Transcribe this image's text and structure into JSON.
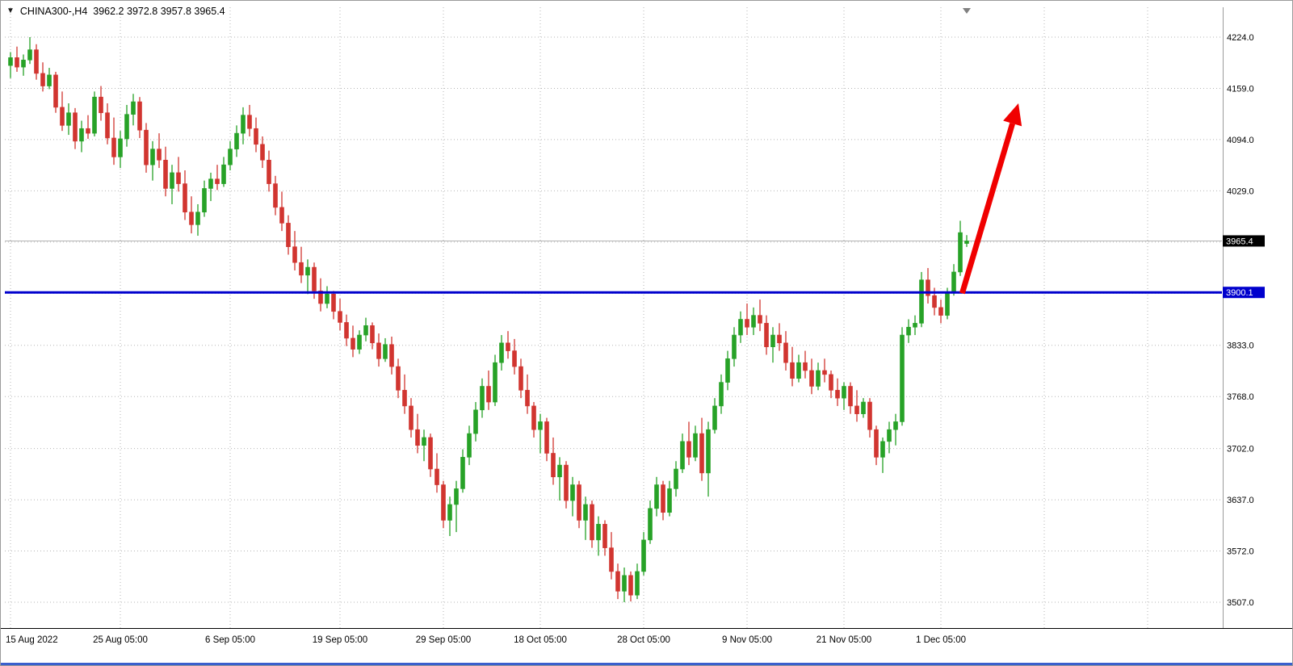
{
  "header": {
    "marker_icon": "▼",
    "symbol_timeframe": "CHINA300-,H4",
    "ohlc": "3962.2 3972.8 3957.8 3965.4"
  },
  "chart_data": {
    "type": "candlestick",
    "symbol": "CHINA300-",
    "timeframe": "H4",
    "last_quote": {
      "open": 3962.2,
      "high": 3972.8,
      "low": 3957.8,
      "close": 3965.4
    },
    "style": {
      "background": "#ffffff",
      "grid": "#b5b5b5",
      "bull": "#27a227",
      "bear": "#d13530",
      "bid_line": "#b4b4b4",
      "axis_text": "#000000"
    },
    "price_axis": {
      "min": 3507.0,
      "max": 4224.0,
      "current_price": 3965.4,
      "ticks": [
        {
          "price": 4224.0,
          "label": "4224.0"
        },
        {
          "price": 4159.0,
          "label": "4159.0"
        },
        {
          "price": 4094.0,
          "label": "4094.0"
        },
        {
          "price": 4029.0,
          "label": "4029.0"
        },
        {
          "price": 3964.0,
          "label": ""
        },
        {
          "price": 3899.0,
          "label": ""
        },
        {
          "price": 3833.0,
          "label": "3833.0"
        },
        {
          "price": 3768.0,
          "label": "3768.0"
        },
        {
          "price": 3702.0,
          "label": "3702.0"
        },
        {
          "price": 3637.0,
          "label": "3637.0"
        },
        {
          "price": 3572.0,
          "label": "3572.0"
        },
        {
          "price": 3507.0,
          "label": "3507.0"
        }
      ],
      "badges": [
        {
          "name": "bid-price",
          "price": 3965.4,
          "label": "3965.4",
          "color": "#000000"
        },
        {
          "name": "line-price",
          "price": 3900.1,
          "label": "3900.1",
          "color": "#0000cd"
        }
      ]
    },
    "time_axis": {
      "ticks": [
        {
          "index": 0,
          "label": "15 Aug 2022"
        },
        {
          "index": 17,
          "label": "25 Aug 05:00"
        },
        {
          "index": 34,
          "label": "6 Sep 05:00"
        },
        {
          "index": 51,
          "label": "19 Sep 05:00"
        },
        {
          "index": 67,
          "label": "29 Sep 05:00"
        },
        {
          "index": 82,
          "label": "18 Oct 05:00"
        },
        {
          "index": 98,
          "label": "28 Oct 05:00"
        },
        {
          "index": 114,
          "label": "9 Nov 05:00"
        },
        {
          "index": 129,
          "label": "21 Nov 05:00"
        },
        {
          "index": 144,
          "label": "1 Dec 05:00"
        },
        {
          "index": 160,
          "label": ""
        },
        {
          "index": 176,
          "label": ""
        }
      ]
    },
    "annotations": {
      "horizontal_line": {
        "price": 3900.1,
        "color": "#0000cd",
        "width": 3
      },
      "trend_arrow": {
        "from_index": 147.3,
        "from_price": 3899.0,
        "to_index": 156.0,
        "to_price": 4140.0,
        "color": "#f00000"
      }
    },
    "candles": [
      [
        4188,
        4205,
        4172,
        4198
      ],
      [
        4198,
        4212,
        4180,
        4186
      ],
      [
        4186,
        4202,
        4175,
        4195
      ],
      [
        4195,
        4224,
        4190,
        4208
      ],
      [
        4208,
        4215,
        4170,
        4178
      ],
      [
        4178,
        4192,
        4155,
        4162
      ],
      [
        4162,
        4185,
        4158,
        4176
      ],
      [
        4176,
        4180,
        4128,
        4135
      ],
      [
        4135,
        4155,
        4105,
        4112
      ],
      [
        4112,
        4140,
        4100,
        4128
      ],
      [
        4128,
        4134,
        4082,
        4092
      ],
      [
        4092,
        4118,
        4078,
        4108
      ],
      [
        4108,
        4125,
        4095,
        4102
      ],
      [
        4102,
        4155,
        4098,
        4148
      ],
      [
        4148,
        4162,
        4118,
        4128
      ],
      [
        4128,
        4140,
        4088,
        4096
      ],
      [
        4096,
        4122,
        4062,
        4072
      ],
      [
        4072,
        4105,
        4058,
        4095
      ],
      [
        4095,
        4138,
        4085,
        4126
      ],
      [
        4126,
        4152,
        4112,
        4142
      ],
      [
        4142,
        4148,
        4096,
        4106
      ],
      [
        4106,
        4115,
        4052,
        4062
      ],
      [
        4062,
        4092,
        4042,
        4082
      ],
      [
        4082,
        4102,
        4058,
        4068
      ],
      [
        4068,
        4085,
        4022,
        4032
      ],
      [
        4032,
        4062,
        4012,
        4052
      ],
      [
        4052,
        4072,
        4028,
        4038
      ],
      [
        4038,
        4055,
        3992,
        4002
      ],
      [
        4002,
        4022,
        3975,
        3986
      ],
      [
        3986,
        4012,
        3972,
        4002
      ],
      [
        4002,
        4042,
        3996,
        4032
      ],
      [
        4032,
        4052,
        4016,
        4044
      ],
      [
        4044,
        4062,
        4030,
        4038
      ],
      [
        4038,
        4072,
        4034,
        4062
      ],
      [
        4062,
        4092,
        4055,
        4082
      ],
      [
        4082,
        4112,
        4072,
        4102
      ],
      [
        4102,
        4135,
        4088,
        4125
      ],
      [
        4125,
        4138,
        4098,
        4108
      ],
      [
        4108,
        4122,
        4078,
        4088
      ],
      [
        4088,
        4098,
        4058,
        4068
      ],
      [
        4068,
        4080,
        4028,
        4038
      ],
      [
        4038,
        4048,
        3998,
        4008
      ],
      [
        4008,
        4028,
        3978,
        3988
      ],
      [
        3988,
        3998,
        3948,
        3958
      ],
      [
        3958,
        3978,
        3928,
        3938
      ],
      [
        3938,
        3958,
        3912,
        3922
      ],
      [
        3922,
        3942,
        3898,
        3932
      ],
      [
        3932,
        3938,
        3892,
        3902
      ],
      [
        3902,
        3918,
        3876,
        3886
      ],
      [
        3886,
        3908,
        3880,
        3898
      ],
      [
        3898,
        3902,
        3866,
        3876
      ],
      [
        3876,
        3892,
        3852,
        3862
      ],
      [
        3862,
        3872,
        3832,
        3842
      ],
      [
        3842,
        3858,
        3818,
        3828
      ],
      [
        3828,
        3852,
        3822,
        3846
      ],
      [
        3846,
        3868,
        3838,
        3858
      ],
      [
        3858,
        3862,
        3828,
        3836
      ],
      [
        3836,
        3848,
        3806,
        3816
      ],
      [
        3816,
        3842,
        3812,
        3834
      ],
      [
        3834,
        3844,
        3796,
        3806
      ],
      [
        3806,
        3816,
        3766,
        3776
      ],
      [
        3776,
        3796,
        3746,
        3756
      ],
      [
        3756,
        3766,
        3716,
        3726
      ],
      [
        3726,
        3746,
        3696,
        3706
      ],
      [
        3706,
        3726,
        3686,
        3716
      ],
      [
        3716,
        3721,
        3666,
        3676
      ],
      [
        3676,
        3696,
        3646,
        3656
      ],
      [
        3656,
        3661,
        3601,
        3611
      ],
      [
        3611,
        3641,
        3591,
        3631
      ],
      [
        3631,
        3661,
        3596,
        3651
      ],
      [
        3651,
        3701,
        3646,
        3691
      ],
      [
        3691,
        3731,
        3681,
        3721
      ],
      [
        3721,
        3761,
        3711,
        3751
      ],
      [
        3751,
        3791,
        3741,
        3781
      ],
      [
        3781,
        3801,
        3751,
        3761
      ],
      [
        3761,
        3821,
        3756,
        3811
      ],
      [
        3811,
        3846,
        3801,
        3836
      ],
      [
        3836,
        3851,
        3816,
        3826
      ],
      [
        3826,
        3841,
        3796,
        3806
      ],
      [
        3806,
        3816,
        3766,
        3776
      ],
      [
        3776,
        3796,
        3746,
        3756
      ],
      [
        3756,
        3761,
        3716,
        3726
      ],
      [
        3726,
        3746,
        3696,
        3736
      ],
      [
        3736,
        3741,
        3686,
        3696
      ],
      [
        3696,
        3716,
        3656,
        3666
      ],
      [
        3666,
        3691,
        3636,
        3681
      ],
      [
        3681,
        3686,
        3626,
        3636
      ],
      [
        3636,
        3666,
        3616,
        3656
      ],
      [
        3656,
        3661,
        3601,
        3611
      ],
      [
        3611,
        3641,
        3586,
        3631
      ],
      [
        3631,
        3636,
        3576,
        3586
      ],
      [
        3586,
        3616,
        3566,
        3606
      ],
      [
        3606,
        3611,
        3566,
        3576
      ],
      [
        3576,
        3596,
        3536,
        3546
      ],
      [
        3546,
        3556,
        3511,
        3521
      ],
      [
        3521,
        3551,
        3507,
        3541
      ],
      [
        3541,
        3546,
        3508,
        3516
      ],
      [
        3516,
        3556,
        3511,
        3546
      ],
      [
        3546,
        3596,
        3541,
        3586
      ],
      [
        3586,
        3636,
        3581,
        3626
      ],
      [
        3626,
        3666,
        3616,
        3656
      ],
      [
        3656,
        3661,
        3611,
        3621
      ],
      [
        3621,
        3661,
        3616,
        3651
      ],
      [
        3651,
        3686,
        3641,
        3676
      ],
      [
        3676,
        3721,
        3671,
        3711
      ],
      [
        3711,
        3736,
        3681,
        3691
      ],
      [
        3691,
        3731,
        3686,
        3721
      ],
      [
        3721,
        3741,
        3661,
        3671
      ],
      [
        3671,
        3736,
        3641,
        3726
      ],
      [
        3726,
        3766,
        3721,
        3756
      ],
      [
        3756,
        3796,
        3746,
        3786
      ],
      [
        3786,
        3826,
        3776,
        3816
      ],
      [
        3816,
        3856,
        3806,
        3846
      ],
      [
        3846,
        3876,
        3836,
        3866
      ],
      [
        3866,
        3886,
        3846,
        3856
      ],
      [
        3856,
        3881,
        3846,
        3871
      ],
      [
        3871,
        3891,
        3851,
        3861
      ],
      [
        3861,
        3871,
        3821,
        3831
      ],
      [
        3831,
        3856,
        3811,
        3846
      ],
      [
        3846,
        3861,
        3826,
        3836
      ],
      [
        3836,
        3851,
        3801,
        3811
      ],
      [
        3811,
        3831,
        3781,
        3791
      ],
      [
        3791,
        3821,
        3786,
        3811
      ],
      [
        3811,
        3826,
        3791,
        3801
      ],
      [
        3801,
        3816,
        3771,
        3781
      ],
      [
        3781,
        3811,
        3776,
        3801
      ],
      [
        3801,
        3816,
        3786,
        3796
      ],
      [
        3796,
        3801,
        3766,
        3776
      ],
      [
        3776,
        3791,
        3756,
        3766
      ],
      [
        3766,
        3786,
        3751,
        3781
      ],
      [
        3781,
        3786,
        3746,
        3756
      ],
      [
        3756,
        3776,
        3736,
        3746
      ],
      [
        3746,
        3766,
        3741,
        3761
      ],
      [
        3761,
        3766,
        3716,
        3726
      ],
      [
        3726,
        3731,
        3681,
        3691
      ],
      [
        3691,
        3716,
        3671,
        3711
      ],
      [
        3711,
        3736,
        3696,
        3726
      ],
      [
        3726,
        3746,
        3706,
        3736
      ],
      [
        3736,
        3856,
        3731,
        3846
      ],
      [
        3846,
        3866,
        3836,
        3856
      ],
      [
        3856,
        3871,
        3846,
        3861
      ],
      [
        3861,
        3926,
        3856,
        3916
      ],
      [
        3916,
        3931,
        3886,
        3896
      ],
      [
        3896,
        3906,
        3871,
        3881
      ],
      [
        3881,
        3891,
        3861,
        3871
      ],
      [
        3871,
        3906,
        3866,
        3901
      ],
      [
        3901,
        3936,
        3896,
        3926
      ],
      [
        3926,
        3991,
        3921,
        3976
      ],
      [
        3962.2,
        3972.8,
        3957.8,
        3965.4
      ]
    ]
  }
}
